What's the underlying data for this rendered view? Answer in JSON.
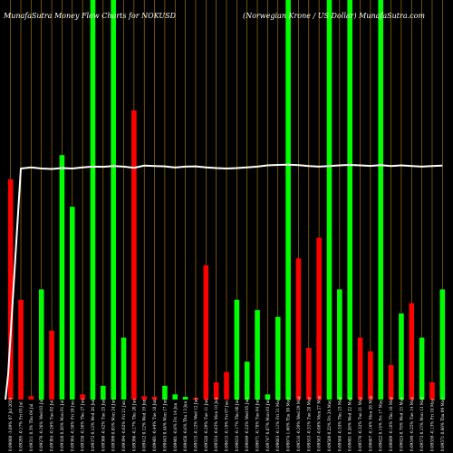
{
  "chart_data": {
    "type": "bar",
    "title_left": "MunafaSutra  Money Flow  Charts for NOKUSD",
    "title_right": "(Norwegian  Krone  / US Dollar) MunafaSutra.com",
    "ylim": [
      0,
      100
    ],
    "colors": {
      "up": "#00ff00",
      "down": "#ff0000",
      "line": "#ffffff",
      "grid": "#b8860b",
      "background": "#000000"
    },
    "bars": [
      {
        "dir": "down",
        "value": 64,
        "label": "0.09080 -3.09% 07 Jul 2024"
      },
      {
        "dir": "down",
        "value": 29,
        "label": "0.09295 -0.17% Fri 05 Jul"
      },
      {
        "dir": "down",
        "value": 1,
        "label": "0.09311 0.3% Thu 04 Jul"
      },
      {
        "dir": "up",
        "value": 32,
        "label": "0.09270 -0.36% Wed 03 Jul"
      },
      {
        "dir": "down",
        "value": 20,
        "label": "0.09304 -0.26% Tue 02 Jul"
      },
      {
        "dir": "up",
        "value": 71,
        "label": "0.09328 0.26% Mon 01 Jul"
      },
      {
        "dir": "up",
        "value": 56,
        "label": "0.09304 -0.36% Fri 28 Jun"
      },
      {
        "dir": "down",
        "value": 1.5,
        "label": "0.09338 -0.36% Thu 27 Jun"
      },
      {
        "dir": "up",
        "value": 100,
        "label": "0.09372 0.12% Wed 26 Jun"
      },
      {
        "dir": "up",
        "value": 4,
        "label": "0.09360 -0.42% Tue 25 Jun"
      },
      {
        "dir": "up",
        "value": 100,
        "label": "0.09399 0.05% Mon 24 Jun"
      },
      {
        "dir": "up",
        "value": 18,
        "label": "0.09394 -0.02% Fri 21 Jun"
      },
      {
        "dir": "down",
        "value": 84,
        "label": "0.09396 -0.17% Thu 20 Jun"
      },
      {
        "dir": "down",
        "value": 1,
        "label": "0.09412 0.12% Wed 19 Jun"
      },
      {
        "dir": "down",
        "value": 0.8,
        "label": "0.09401 -0.44% Tue 18 Jun"
      },
      {
        "dir": "up",
        "value": 4,
        "label": "0.09443 0.44% Mon 17 Jun"
      },
      {
        "dir": "up",
        "value": 1.5,
        "label": "0.09401 -0.6% Fri 14 Jun"
      },
      {
        "dir": "up",
        "value": 0.8,
        "label": "0.09458 -0.6% Thu 13 Jun"
      },
      {
        "dir": "down",
        "value": 0.5,
        "label": "0.09515 -0.12% Wed 12 Jun"
      },
      {
        "dir": "down",
        "value": 39,
        "label": "0.09526 -0.29% Tue 11 Jun"
      },
      {
        "dir": "down",
        "value": 5,
        "label": "0.09554 -0.63% Mon 10 Jun"
      },
      {
        "dir": "down",
        "value": 8,
        "label": "0.09615 -0.19% Fri 07 Jun"
      },
      {
        "dir": "up",
        "value": 29,
        "label": "0.09633 -0.17% Thu 06 Jun"
      },
      {
        "dir": "up",
        "value": 11,
        "label": "0.09649 -0.23% Wed 05 Jun"
      },
      {
        "dir": "up",
        "value": 26,
        "label": "0.09671 -0.78% Tue 04 Jun"
      },
      {
        "dir": "up",
        "value": 1.5,
        "label": "0.09747 0.87% Mon 03 Jun"
      },
      {
        "dir": "up",
        "value": 24,
        "label": "0.09663 -0.11% Fri 31 May"
      },
      {
        "dir": "up",
        "value": 100,
        "label": "0.09674 1.66% Thu 30 May"
      },
      {
        "dir": "down",
        "value": 41,
        "label": "0.09516 -0.39% Wed 29 May"
      },
      {
        "dir": "down",
        "value": 15,
        "label": "0.09553 -0.31% Tue 28 May"
      },
      {
        "dir": "down",
        "value": 47,
        "label": "0.09583 -0.06% Mon 27 May"
      },
      {
        "dir": "up",
        "value": 100,
        "label": "0.09589 0.22% Fri 24 May"
      },
      {
        "dir": "up",
        "value": 32,
        "label": "0.09568 -0.34% Thu 23 May"
      },
      {
        "dir": "up",
        "value": 100,
        "label": "0.09601 0.26% Wed 22 May"
      },
      {
        "dir": "down",
        "value": 18,
        "label": "0.09576 -0.32% Tue 21 May"
      },
      {
        "dir": "down",
        "value": 14,
        "label": "0.09607 -0.16% Mon 20 May"
      },
      {
        "dir": "up",
        "value": 100,
        "label": "0.09622 0.14% Fri 17 May"
      },
      {
        "dir": "down",
        "value": 10,
        "label": "0.09609 -0.16% Thu 16 May"
      },
      {
        "dir": "up",
        "value": 25,
        "label": "0.09624 0.78% Wed 15 May"
      },
      {
        "dir": "down",
        "value": 28,
        "label": "0.09549 -0.25% Tue 14 May"
      },
      {
        "dir": "up",
        "value": 18,
        "label": "0.09573 0.15% Mon 13 May"
      },
      {
        "dir": "down",
        "value": 5,
        "label": "0.09559 -0.13% Fri 10 May"
      },
      {
        "dir": "up",
        "value": 32,
        "label": "0.09571 0.66% Thu 09 May"
      }
    ],
    "line": [
      10,
      96,
      96.5,
      96,
      95.8,
      96.2,
      96,
      96.5,
      96.8,
      96.7,
      97,
      96.8,
      96.3,
      97.2,
      97,
      96.9,
      96.4,
      96.8,
      96.9,
      96.5,
      96.2,
      96,
      96.2,
      96.5,
      96.8,
      97.3,
      97.5,
      97.6,
      97.4,
      97,
      96.8,
      97,
      97.3,
      97.5,
      97.3,
      97.1,
      97.4,
      97,
      97.3,
      97,
      96.8,
      97,
      97.2
    ]
  }
}
